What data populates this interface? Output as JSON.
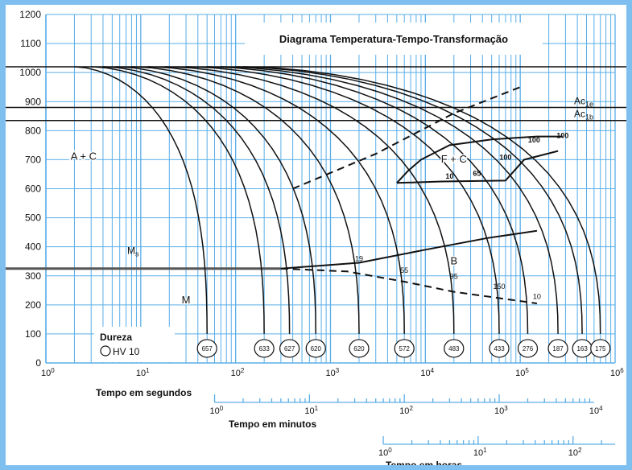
{
  "chart_data": {
    "type": "line",
    "title": "Diagrama Temperatura-Tempo-Transformação",
    "ylim": [
      0,
      1200
    ],
    "y_ticks": [
      "0",
      "100",
      "200",
      "300",
      "400",
      "500",
      "600",
      "700",
      "800",
      "900",
      "1000",
      "1100",
      "1200"
    ],
    "x_scale": "log",
    "xlim": [
      1,
      1000000
    ],
    "x_ticks": [
      {
        "base": "10",
        "exp": "0"
      },
      {
        "base": "10",
        "exp": "1"
      },
      {
        "base": "10",
        "exp": "2"
      },
      {
        "base": "10",
        "exp": "3"
      },
      {
        "base": "10",
        "exp": "4"
      },
      {
        "base": "10",
        "exp": "5"
      },
      {
        "base": "10",
        "exp": "6"
      }
    ],
    "xlabel": "Tempo em segundos",
    "minutes_axis": {
      "label": "Tempo em minutos",
      "ticks": [
        {
          "base": "10",
          "exp": "0"
        },
        {
          "base": "10",
          "exp": "1"
        },
        {
          "base": "10",
          "exp": "2"
        },
        {
          "base": "10",
          "exp": "3"
        },
        {
          "base": "10",
          "exp": "4"
        }
      ]
    },
    "hours_axis": {
      "label": "Tempo em horas",
      "ticks": [
        {
          "base": "10",
          "exp": "0"
        },
        {
          "base": "10",
          "exp": "1"
        },
        {
          "base": "10",
          "exp": "2"
        }
      ]
    },
    "reference_lines": [
      {
        "y": 1020,
        "label": ""
      },
      {
        "y": 880,
        "label": "Ac",
        "sub": "1e"
      },
      {
        "y": 835,
        "label": "Ac",
        "sub": "1b"
      }
    ],
    "martensite_start": {
      "label": "M",
      "sub": "s",
      "y": 325
    },
    "regions": [
      {
        "label": "A + C",
        "x": 2.5,
        "y": 700
      },
      {
        "label": "F + C",
        "x": 20000,
        "y": 690
      },
      {
        "label": "B",
        "x": 20000,
        "y": 340
      },
      {
        "label": "M",
        "x": 30,
        "y": 205
      }
    ],
    "ferrite_start": [
      [
        5000,
        620
      ],
      [
        6500,
        660
      ],
      [
        9000,
        700
      ],
      [
        18000,
        750
      ],
      [
        50000,
        770
      ],
      [
        150000,
        780
      ],
      [
        280000,
        780
      ]
    ],
    "ferrite_finish": [
      [
        5000,
        620
      ],
      [
        15000,
        625
      ],
      [
        70000,
        628
      ],
      [
        110000,
        700
      ],
      [
        250000,
        730
      ]
    ],
    "ferrite_labels": [
      {
        "text": "10",
        "x": 18000,
        "y": 635
      },
      {
        "text": "65",
        "x": 35000,
        "y": 645
      },
      {
        "text": "100",
        "x": 70000,
        "y": 700
      },
      {
        "text": "100",
        "x": 140000,
        "y": 760
      },
      {
        "text": "100",
        "x": 280000,
        "y": 775
      }
    ],
    "bainite_start": [
      [
        300,
        325
      ],
      [
        2000,
        345
      ],
      [
        10000,
        390
      ],
      [
        45000,
        430
      ],
      [
        150000,
        455
      ]
    ],
    "bainite_finish_dashed": [
      [
        300,
        325
      ],
      [
        1500,
        315
      ],
      [
        6000,
        280
      ],
      [
        20000,
        245
      ],
      [
        150000,
        205
      ]
    ],
    "bainite_labels": [
      {
        "text": "19",
        "x": 2000,
        "y": 350
      },
      {
        "text": "55",
        "x": 6000,
        "y": 310
      },
      {
        "text": "95",
        "x": 20000,
        "y": 290
      },
      {
        "text": "150",
        "x": 60000,
        "y": 255
      },
      {
        "text": "10",
        "x": 150000,
        "y": 220
      }
    ],
    "upper_dashed": [
      [
        400,
        600
      ],
      [
        3000,
        720
      ],
      [
        20000,
        860
      ],
      [
        100000,
        950
      ]
    ],
    "cooling_curves": [
      {
        "hardness": "657",
        "end_time": 50
      },
      {
        "hardness": "633",
        "end_time": 200
      },
      {
        "hardness": "627",
        "end_time": 370
      },
      {
        "hardness": "620",
        "end_time": 700
      },
      {
        "hardness": "620",
        "end_time": 2000
      },
      {
        "hardness": "572",
        "end_time": 6000
      },
      {
        "hardness": "483",
        "end_time": 20000
      },
      {
        "hardness": "433",
        "end_time": 60000
      },
      {
        "hardness": "276",
        "end_time": 120000
      },
      {
        "hardness": "187",
        "end_time": 250000
      },
      {
        "hardness": "163",
        "end_time": 450000
      },
      {
        "hardness": "175",
        "end_time": 700000
      }
    ],
    "legend": {
      "title": "Dureza",
      "item": "HV 10"
    }
  },
  "colors": {
    "frame": "#7fbff0",
    "grid": "#5aaee8",
    "ink": "#111111"
  }
}
